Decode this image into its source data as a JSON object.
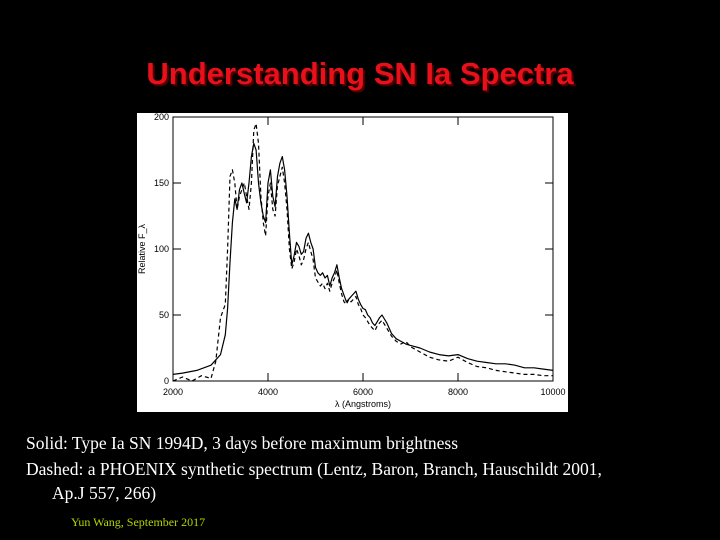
{
  "slide": {
    "title": "Understanding SN Ia Spectra",
    "caption_1": "Solid: Type Ia SN 1994D, 3 days before maximum brightness",
    "caption_2a": "Dashed: a PHOENIX synthetic spectrum (Lentz, Baron, Branch, Hauschildt 2001,",
    "caption_2b": "Ap.J 557, 266)",
    "footer": "Yun Wang, September 2017",
    "colors": {
      "title": "#e8101a",
      "footer": "#b6d400",
      "background": "#000000"
    }
  },
  "chart_data": {
    "type": "line",
    "xlabel": "λ (Angstroms)",
    "ylabel": "Relative F_λ",
    "xlim": [
      2000,
      10000
    ],
    "ylim": [
      0,
      200
    ],
    "xticks": [
      2000,
      4000,
      6000,
      8000,
      10000
    ],
    "yticks": [
      0,
      50,
      100,
      150,
      200
    ],
    "xtick_labels": [
      "2000",
      "4000",
      "6000",
      "8000",
      "10000"
    ],
    "ytick_labels": [
      "0",
      "50",
      "100",
      "150",
      "200"
    ],
    "grid": false,
    "series": [
      {
        "style": "solid",
        "x": [
          2000,
          2200,
          2500,
          2800,
          3000,
          3100,
          3150,
          3200,
          3250,
          3300,
          3350,
          3400,
          3450,
          3500,
          3550,
          3600,
          3650,
          3700,
          3750,
          3800,
          3850,
          3900,
          3950,
          4000,
          4050,
          4100,
          4150,
          4200,
          4250,
          4300,
          4350,
          4400,
          4450,
          4500,
          4550,
          4600,
          4650,
          4700,
          4750,
          4800,
          4850,
          4900,
          4950,
          5000,
          5050,
          5100,
          5150,
          5200,
          5250,
          5300,
          5350,
          5400,
          5450,
          5500,
          5550,
          5600,
          5650,
          5700,
          5750,
          5800,
          5850,
          5900,
          5950,
          6000,
          6050,
          6100,
          6150,
          6200,
          6250,
          6300,
          6350,
          6400,
          6500,
          6600,
          6700,
          6800,
          6900,
          7000,
          7200,
          7400,
          7600,
          7800,
          8000,
          8200,
          8400,
          8600,
          8800,
          9000,
          9200,
          9400,
          9600,
          9800,
          10000
        ],
        "y": [
          5,
          6,
          8,
          12,
          20,
          35,
          55,
          90,
          120,
          138,
          130,
          145,
          150,
          142,
          135,
          150,
          170,
          180,
          175,
          150,
          135,
          125,
          120,
          150,
          160,
          140,
          132,
          155,
          165,
          170,
          160,
          140,
          112,
          88,
          95,
          105,
          102,
          96,
          98,
          108,
          112,
          105,
          100,
          86,
          82,
          80,
          82,
          78,
          80,
          72,
          78,
          82,
          88,
          78,
          70,
          65,
          60,
          62,
          64,
          66,
          68,
          62,
          58,
          55,
          54,
          50,
          48,
          44,
          42,
          45,
          48,
          50,
          44,
          36,
          32,
          30,
          28,
          27,
          25,
          22,
          20,
          19,
          20,
          17,
          15,
          14,
          13,
          13,
          12,
          10,
          10,
          9,
          8
        ]
      },
      {
        "style": "dashed",
        "x": [
          2000,
          2200,
          2400,
          2600,
          2800,
          2900,
          3000,
          3100,
          3150,
          3200,
          3250,
          3300,
          3350,
          3400,
          3450,
          3500,
          3550,
          3600,
          3650,
          3700,
          3750,
          3800,
          3850,
          3900,
          3950,
          4000,
          4050,
          4100,
          4150,
          4200,
          4250,
          4300,
          4350,
          4400,
          4450,
          4500,
          4550,
          4600,
          4650,
          4700,
          4750,
          4800,
          4850,
          4900,
          4950,
          5000,
          5050,
          5100,
          5150,
          5200,
          5250,
          5300,
          5350,
          5400,
          5450,
          5500,
          5550,
          5600,
          5650,
          5700,
          5750,
          5800,
          5850,
          5900,
          5950,
          6000,
          6050,
          6100,
          6150,
          6200,
          6250,
          6300,
          6350,
          6400,
          6500,
          6600,
          6700,
          6800,
          6900,
          7000,
          7200,
          7400,
          7600,
          7800,
          8000,
          8200,
          8400,
          8600,
          8800,
          9000,
          9200,
          9400,
          9600,
          9800,
          10000
        ],
        "y": [
          0,
          3,
          0,
          4,
          2,
          15,
          48,
          58,
          100,
          155,
          160,
          150,
          130,
          140,
          145,
          150,
          140,
          130,
          150,
          190,
          195,
          180,
          140,
          120,
          110,
          140,
          150,
          130,
          125,
          148,
          155,
          162,
          150,
          130,
          100,
          85,
          90,
          100,
          95,
          88,
          92,
          100,
          105,
          98,
          92,
          78,
          75,
          72,
          74,
          70,
          74,
          68,
          74,
          78,
          84,
          74,
          66,
          60,
          58,
          62,
          60,
          62,
          64,
          58,
          55,
          50,
          48,
          45,
          42,
          40,
          38,
          42,
          44,
          46,
          40,
          34,
          30,
          28,
          30,
          26,
          22,
          18,
          16,
          15,
          18,
          14,
          11,
          10,
          8,
          7,
          6,
          5,
          5,
          4,
          4
        ]
      }
    ]
  }
}
